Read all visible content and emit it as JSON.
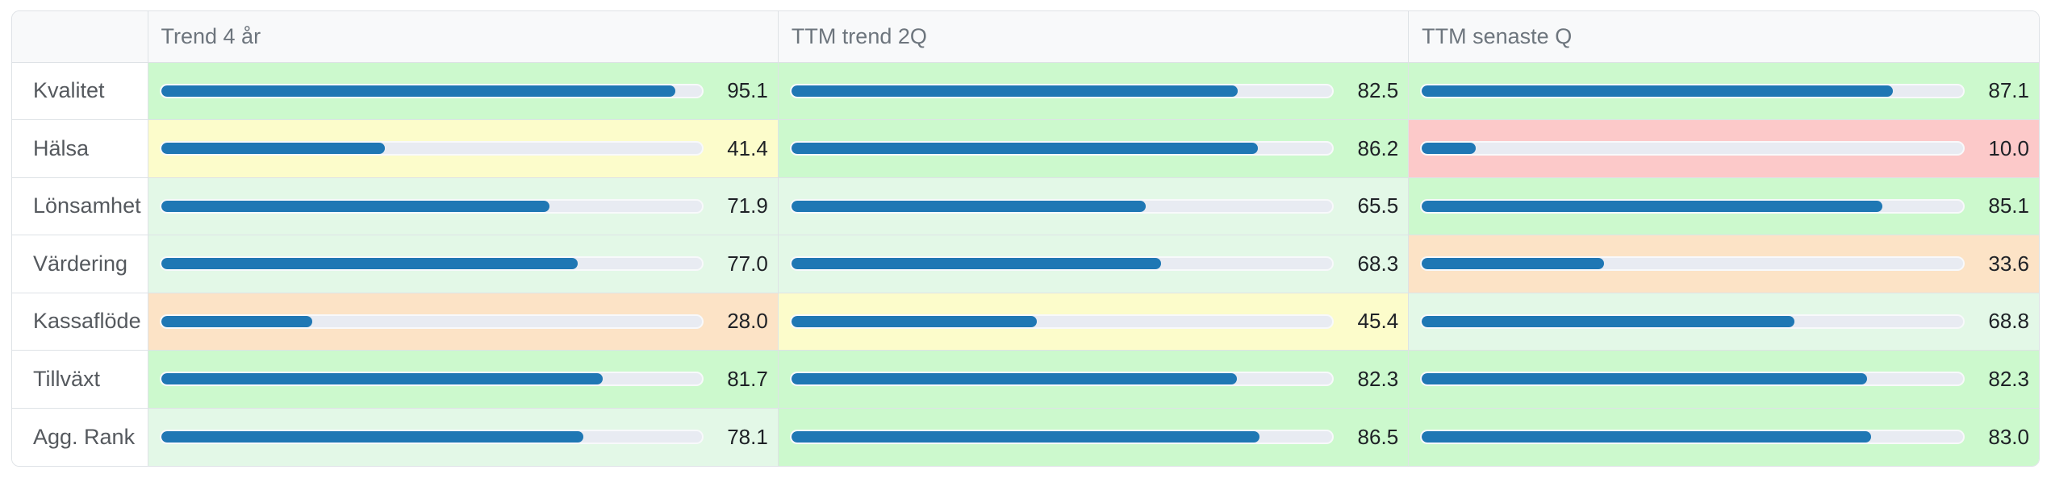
{
  "table": {
    "columns": [
      "Trend 4 år",
      "TTM trend 2Q",
      "TTM senaste Q"
    ],
    "rows": [
      {
        "label": "Kvalitet",
        "cells": [
          {
            "value": "95.1",
            "pct": 95.1,
            "tone": "green"
          },
          {
            "value": "82.5",
            "pct": 82.5,
            "tone": "green"
          },
          {
            "value": "87.1",
            "pct": 87.1,
            "tone": "green"
          }
        ]
      },
      {
        "label": "Hälsa",
        "cells": [
          {
            "value": "41.4",
            "pct": 41.4,
            "tone": "yellow"
          },
          {
            "value": "86.2",
            "pct": 86.2,
            "tone": "green"
          },
          {
            "value": "10.0",
            "pct": 10.0,
            "tone": "red"
          }
        ]
      },
      {
        "label": "Lönsamhet",
        "cells": [
          {
            "value": "71.9",
            "pct": 71.9,
            "tone": "lightgreen"
          },
          {
            "value": "65.5",
            "pct": 65.5,
            "tone": "lightgreen"
          },
          {
            "value": "85.1",
            "pct": 85.1,
            "tone": "green"
          }
        ]
      },
      {
        "label": "Värdering",
        "cells": [
          {
            "value": "77.0",
            "pct": 77.0,
            "tone": "lightgreen"
          },
          {
            "value": "68.3",
            "pct": 68.3,
            "tone": "lightgreen"
          },
          {
            "value": "33.6",
            "pct": 33.6,
            "tone": "orange"
          }
        ]
      },
      {
        "label": "Kassaflöde",
        "cells": [
          {
            "value": "28.0",
            "pct": 28.0,
            "tone": "orange"
          },
          {
            "value": "45.4",
            "pct": 45.4,
            "tone": "yellow"
          },
          {
            "value": "68.8",
            "pct": 68.8,
            "tone": "lightgreen"
          }
        ]
      },
      {
        "label": "Tillväxt",
        "cells": [
          {
            "value": "81.7",
            "pct": 81.7,
            "tone": "green"
          },
          {
            "value": "82.3",
            "pct": 82.3,
            "tone": "green"
          },
          {
            "value": "82.3",
            "pct": 82.3,
            "tone": "green"
          }
        ]
      },
      {
        "label": "Agg. Rank",
        "cells": [
          {
            "value": "78.1",
            "pct": 78.1,
            "tone": "lightgreen"
          },
          {
            "value": "86.5",
            "pct": 86.5,
            "tone": "green"
          },
          {
            "value": "83.0",
            "pct": 83.0,
            "tone": "green"
          }
        ]
      }
    ],
    "colors": {
      "bar": "#1f77b4",
      "track": "#e8ebf2",
      "track_border": "rgba(255,255,255,0.7)",
      "border": "#dee2e6",
      "header_bg": "#f8f9fa",
      "header_text": "#6d757d",
      "label_text": "#55595e",
      "value_text": "#1e2126",
      "tones": {
        "green": "#ccf9cd",
        "lightgreen": "#e3f8e7",
        "yellow": "#fcfccb",
        "orange": "#fce3c6",
        "red": "#fcc9c9"
      }
    }
  },
  "chart_data": {
    "type": "bar",
    "title": "",
    "categories": [
      "Kvalitet",
      "Hälsa",
      "Lönsamhet",
      "Värdering",
      "Kassaflöde",
      "Tillväxt",
      "Agg. Rank"
    ],
    "series": [
      {
        "name": "Trend 4 år",
        "values": [
          95.1,
          41.4,
          71.9,
          77.0,
          28.0,
          81.7,
          78.1
        ]
      },
      {
        "name": "TTM trend 2Q",
        "values": [
          82.5,
          86.2,
          65.5,
          68.3,
          45.4,
          82.3,
          86.5
        ]
      },
      {
        "name": "TTM senaste Q",
        "values": [
          87.1,
          10.0,
          85.1,
          33.6,
          68.8,
          82.3,
          83.0
        ]
      }
    ],
    "value_range": [
      0,
      100
    ],
    "layout": "horizontal bars embedded in table cells, grid off, no legend (column headers act as series labels)"
  }
}
